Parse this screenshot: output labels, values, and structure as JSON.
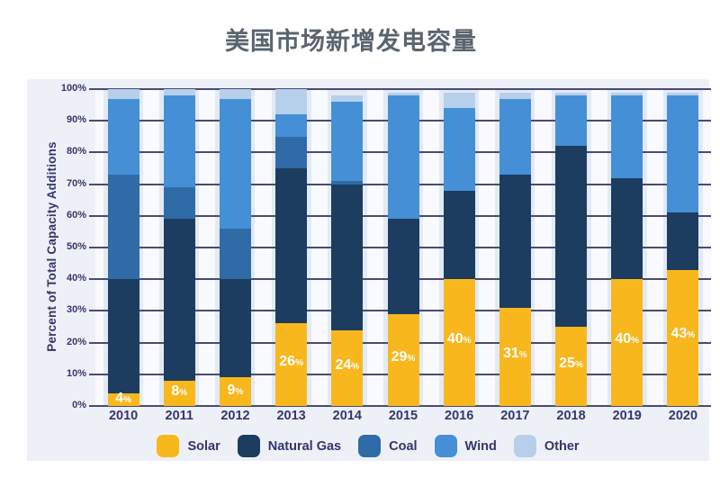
{
  "chart_data": {
    "type": "bar",
    "stacked": true,
    "title": "美国市场新增发电容量",
    "ylabel": "Percent of Total Capacity Additions",
    "xlabel": "",
    "ylim": [
      0,
      100
    ],
    "grid": true,
    "legend_position": "bottom",
    "categories": [
      "2010",
      "2011",
      "2012",
      "2013",
      "2014",
      "2015",
      "2016",
      "2017",
      "2018",
      "2019",
      "2020"
    ],
    "series": [
      {
        "name": "Solar",
        "color": "#F8B71C",
        "values": [
          4,
          8,
          9,
          26,
          24,
          29,
          40,
          31,
          25,
          40,
          43
        ]
      },
      {
        "name": "Natural Gas",
        "color": "#1C3C60",
        "values": [
          36,
          51,
          31,
          49,
          46,
          30,
          28,
          42,
          57,
          32,
          18
        ]
      },
      {
        "name": "Coal",
        "color": "#2F6BA6",
        "values": [
          33,
          10,
          16,
          10,
          1,
          0,
          0,
          0,
          0,
          0,
          0
        ]
      },
      {
        "name": "Wind",
        "color": "#458FD6",
        "values": [
          24,
          29,
          41,
          7,
          25,
          39,
          26,
          24,
          16,
          26,
          37
        ]
      },
      {
        "name": "Other",
        "color": "#B6D0EB",
        "values": [
          3,
          2,
          3,
          8,
          2,
          1,
          5,
          2,
          1,
          1,
          1
        ]
      }
    ],
    "bar_labels": {
      "series": "Solar",
      "values": [
        "4%",
        "8%",
        "9%",
        "26%",
        "24%",
        "29%",
        "40%",
        "31%",
        "25%",
        "40%",
        "43%"
      ]
    },
    "yticks": [
      "0%",
      "10%",
      "20%",
      "30%",
      "40%",
      "50%",
      "60%",
      "70%",
      "80%",
      "90%",
      "100%"
    ],
    "colors": {
      "gridline": "#4A4A73",
      "plot_background": "#F8FAFD",
      "column_stripe": "#E2EAF4",
      "panel_background": "#EDF1F7",
      "axis_text": "#33356B",
      "title_text": "#59646E",
      "bar_label_text": "#FFFFFF"
    }
  }
}
